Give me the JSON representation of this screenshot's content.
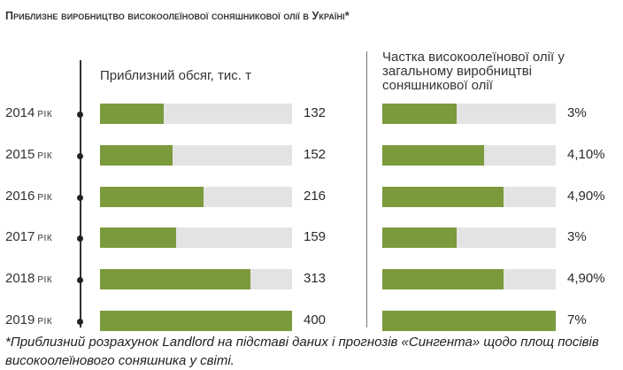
{
  "title": "Приблизне виробництво високоолеїнової соняшникової олії в Україні*",
  "chart_data": [
    {
      "type": "bar",
      "orientation": "horizontal",
      "title": "Приблизний обсяг, тис. т",
      "categories": [
        "2014",
        "2015",
        "2016",
        "2017",
        "2018",
        "2019"
      ],
      "category_suffix": "рік",
      "values": [
        132,
        152,
        216,
        159,
        313,
        400
      ],
      "value_labels": [
        "132",
        "152",
        "216",
        "159",
        "313",
        "400"
      ],
      "xlim": [
        0,
        400
      ],
      "bar_color": "#7b9a3c",
      "track_color": "#e3e3e3"
    },
    {
      "type": "bar",
      "orientation": "horizontal",
      "title": "Частка високоолеїнової олії у загальному виробництві соняшникової олії",
      "categories": [
        "2014",
        "2015",
        "2016",
        "2017",
        "2018",
        "2019"
      ],
      "values": [
        3,
        4.1,
        4.9,
        3,
        4.9,
        7
      ],
      "value_labels": [
        "3%",
        "4,10%",
        "4,90%",
        "3%",
        "4,90%",
        "7%"
      ],
      "xlim": [
        0,
        7
      ],
      "bar_color": "#7b9a3c",
      "track_color": "#e3e3e3"
    }
  ],
  "footnote": "*Приблизний розрахунок Landlord на підставі даних і прогнозів «Сингента» щодо площ посівів високоолеїнового соняшника у світі."
}
